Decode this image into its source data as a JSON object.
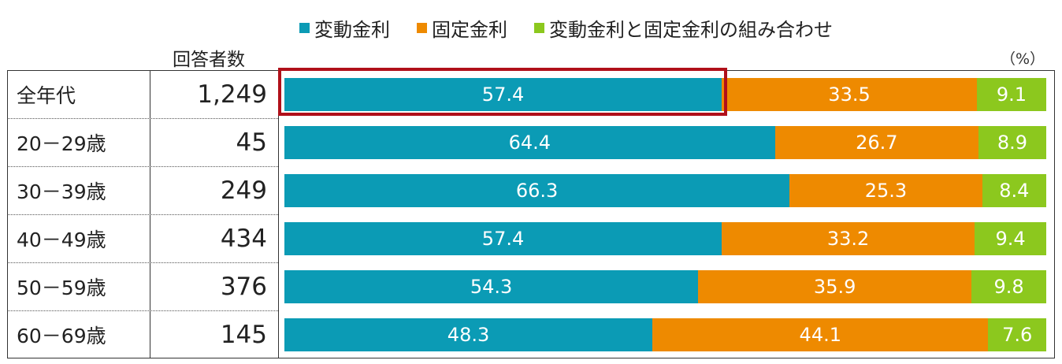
{
  "legend": {
    "items": [
      {
        "label": "変動金利",
        "color": "#0b9bb5"
      },
      {
        "label": "固定金利",
        "color": "#ee8a00"
      },
      {
        "label": "変動金利と固定金利の組み合わせ",
        "color": "#8cc81e"
      }
    ]
  },
  "table": {
    "count_header": "回答者数",
    "unit": "（%）"
  },
  "chart_data": {
    "type": "bar",
    "stacked": true,
    "orientation": "horizontal",
    "categories": [
      "全年代",
      "20－29歳",
      "30－39歳",
      "40－49歳",
      "50－59歳",
      "60－69歳"
    ],
    "respondents": [
      "1,249",
      "45",
      "249",
      "434",
      "376",
      "145"
    ],
    "series": [
      {
        "name": "変動金利",
        "color": "#0b9bb5",
        "values": [
          57.4,
          64.4,
          66.3,
          57.4,
          54.3,
          48.3
        ]
      },
      {
        "name": "固定金利",
        "color": "#ee8a00",
        "values": [
          33.5,
          26.7,
          25.3,
          33.2,
          35.9,
          44.1
        ]
      },
      {
        "name": "変動金利と固定金利の組み合わせ",
        "color": "#8cc81e",
        "values": [
          9.1,
          8.9,
          8.4,
          9.4,
          9.8,
          7.6
        ]
      }
    ],
    "highlighted": {
      "category": "全年代",
      "series": "変動金利",
      "color": "#b0101a"
    },
    "xlim": [
      0,
      100
    ]
  }
}
